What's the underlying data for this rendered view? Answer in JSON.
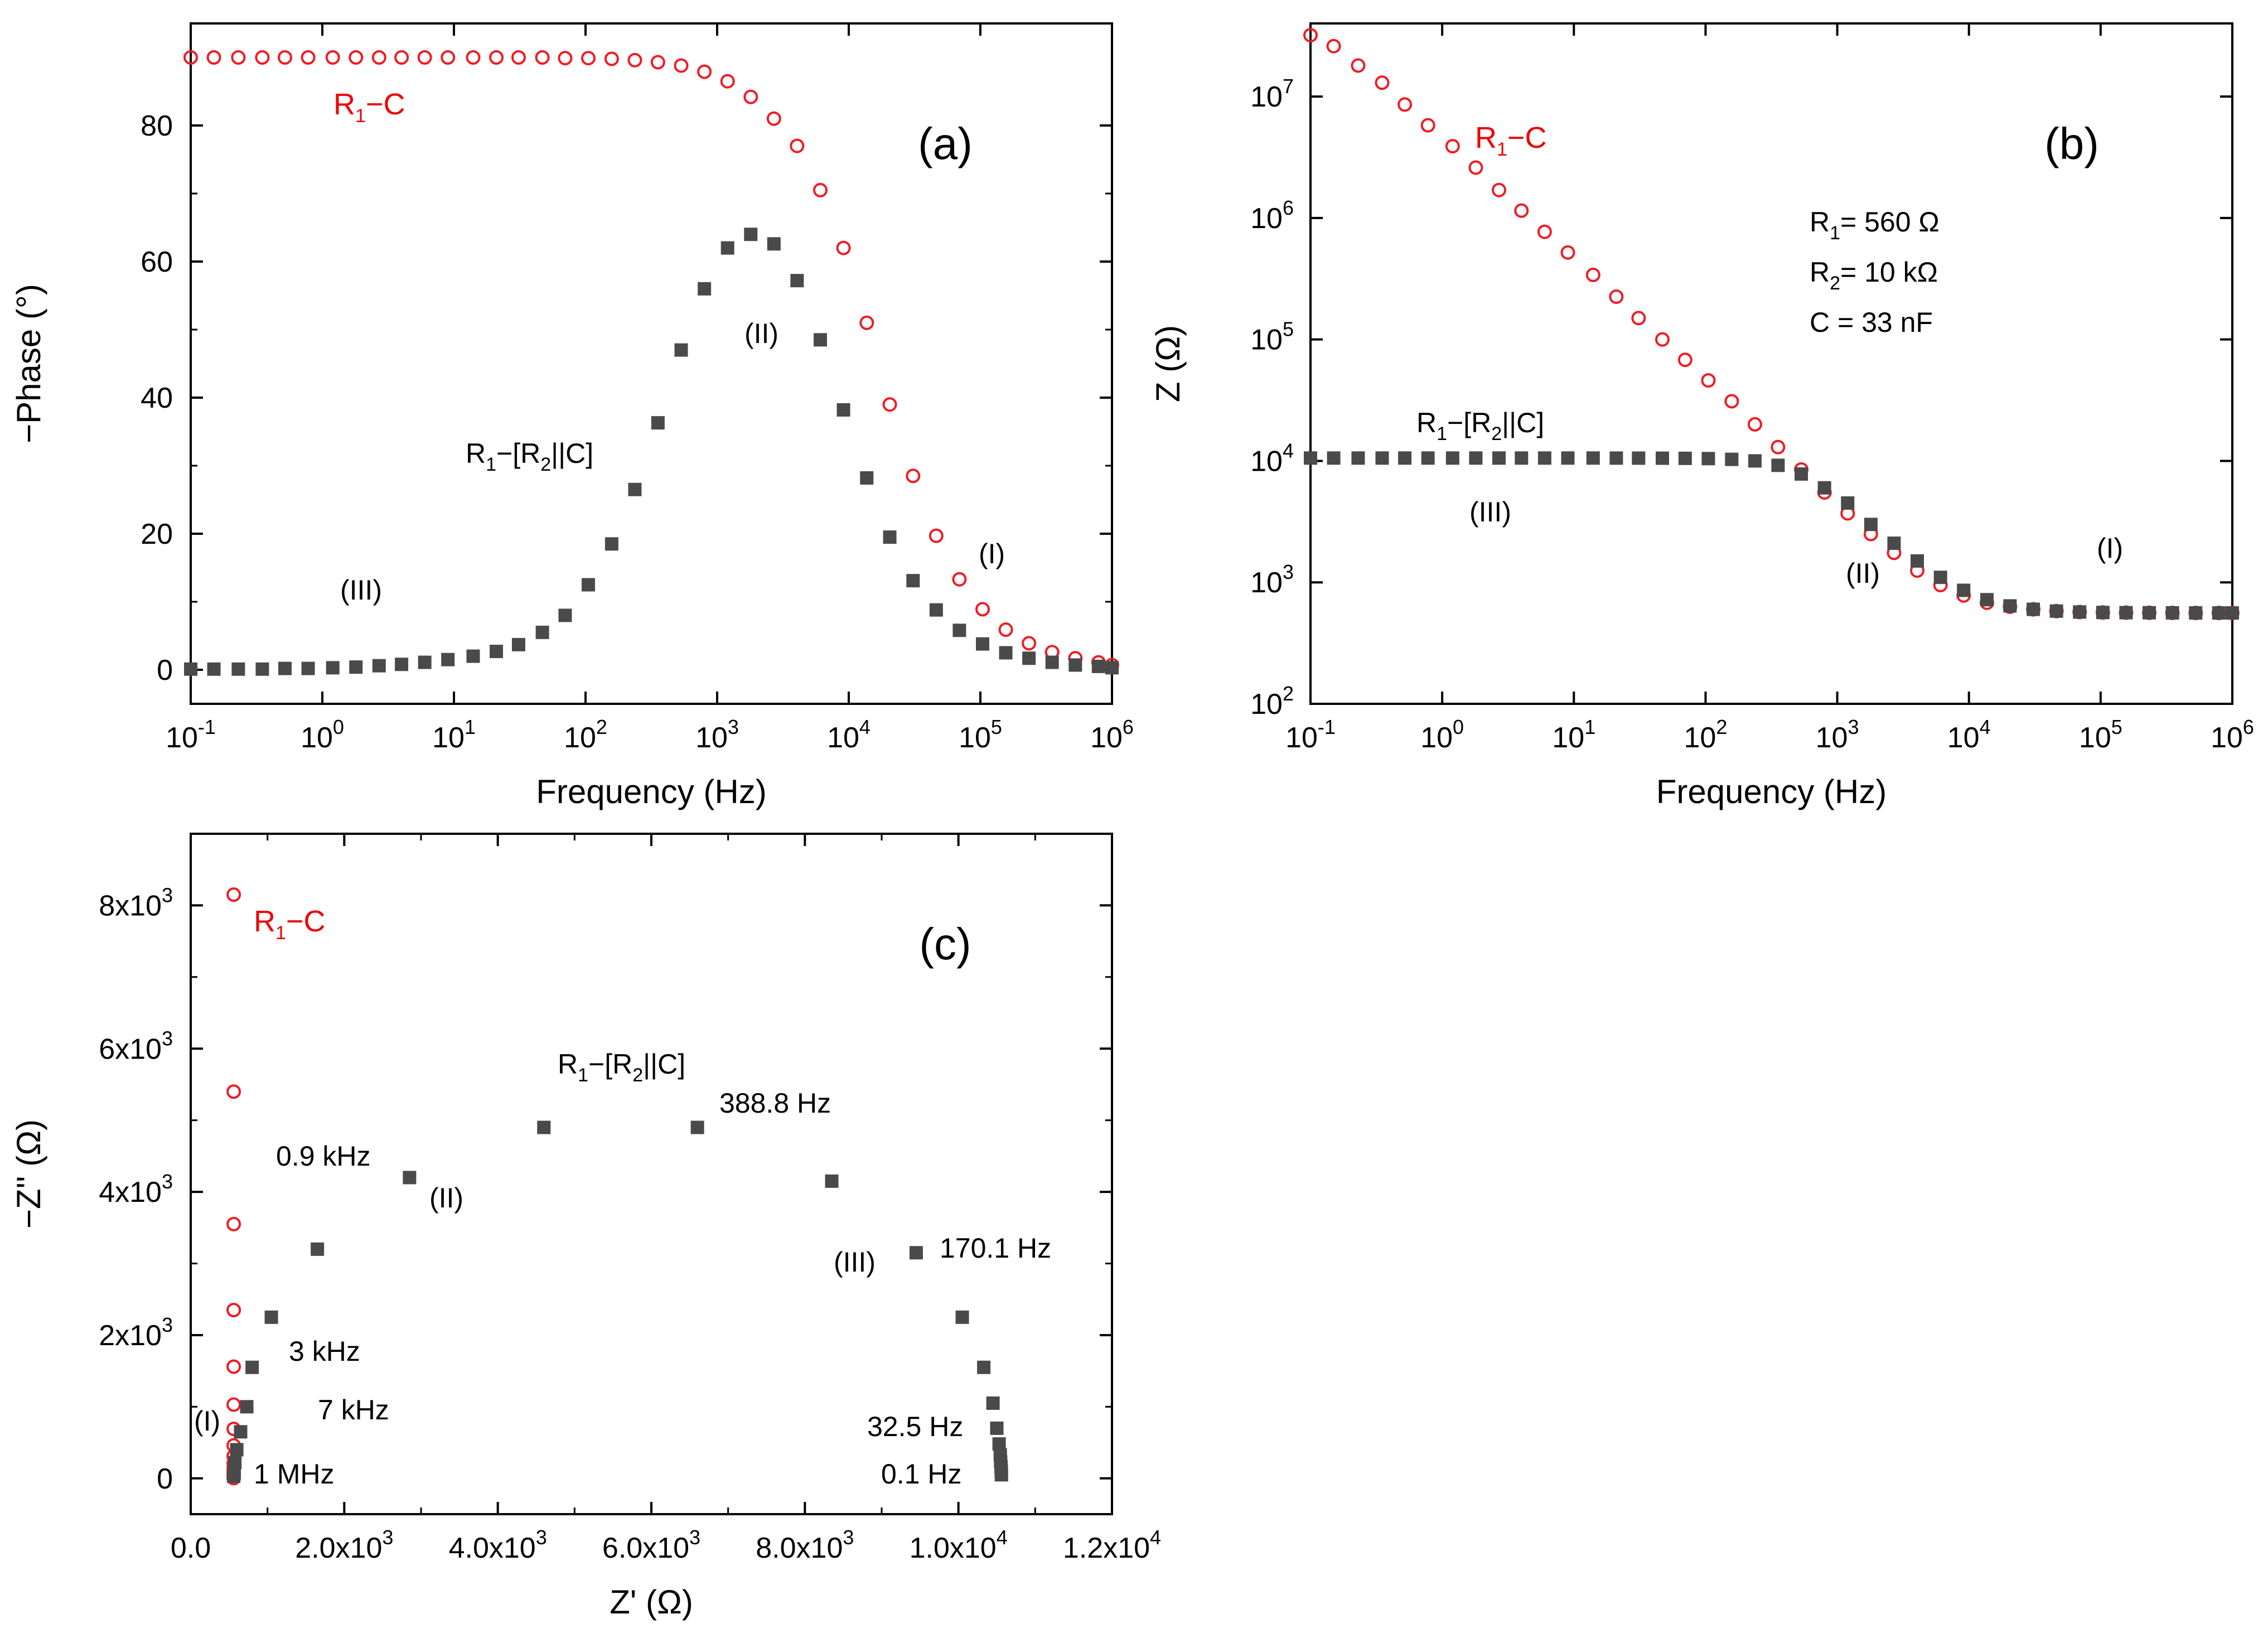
{
  "chart_data": [
    {
      "id": "a",
      "type": "scatter",
      "panel_label": "(a)",
      "xlabel": "Frequency (Hz)",
      "ylabel": "−Phase (°)",
      "xscale": "log",
      "xlim": [
        0.1,
        1000000
      ],
      "ylim": [
        -5,
        95
      ],
      "xticks": [
        {
          "v": 0.1,
          "base": "10",
          "exp": "-1"
        },
        {
          "v": 1,
          "base": "10",
          "exp": "0"
        },
        {
          "v": 10,
          "base": "10",
          "exp": "1"
        },
        {
          "v": 100,
          "base": "10",
          "exp": "2"
        },
        {
          "v": 1000,
          "base": "10",
          "exp": "3"
        },
        {
          "v": 10000,
          "base": "10",
          "exp": "4"
        },
        {
          "v": 100000,
          "base": "10",
          "exp": "5"
        },
        {
          "v": 1000000,
          "base": "10",
          "exp": "6"
        }
      ],
      "yticks": [
        {
          "v": 0,
          "label": "0"
        },
        {
          "v": 20,
          "label": "20"
        },
        {
          "v": 40,
          "label": "40"
        },
        {
          "v": 60,
          "label": "60"
        },
        {
          "v": 80,
          "label": "80"
        }
      ],
      "series": [
        {
          "name": "R1−C",
          "marker": "circle",
          "color": "#ee1c25",
          "x": [
            0.1,
            0.15,
            0.23,
            0.35,
            0.52,
            0.78,
            1.2,
            1.8,
            2.7,
            4,
            6,
            9,
            14,
            21,
            31,
            47,
            70,
            105,
            158,
            237,
            355,
            533,
            800,
            1200,
            1800,
            2700,
            4050,
            6080,
            9120,
            13700,
            20500,
            30800,
            46200,
            69300,
            104000,
            156000,
            234000,
            351000,
            527000,
            790000,
            1000000
          ],
          "y": [
            90,
            90,
            90,
            90,
            90,
            90,
            90,
            90,
            90,
            90,
            90,
            90,
            90,
            90,
            90,
            90,
            89.9,
            89.9,
            89.8,
            89.6,
            89.3,
            88.8,
            87.9,
            86.5,
            84.2,
            81,
            77,
            70.5,
            62,
            51,
            39,
            28.5,
            19.7,
            13.3,
            8.9,
            5.9,
            3.9,
            2.6,
            1.7,
            1.1,
            0.7
          ]
        },
        {
          "name": "R1−[R2||C]",
          "marker": "square",
          "color": "#4a4a4a",
          "x": [
            0.1,
            0.15,
            0.23,
            0.35,
            0.52,
            0.78,
            1.2,
            1.8,
            2.7,
            4,
            6,
            9,
            14,
            21,
            31,
            47,
            70,
            105,
            158,
            237,
            355,
            533,
            800,
            1200,
            1800,
            2700,
            4050,
            6080,
            9120,
            13700,
            20500,
            30800,
            46200,
            69300,
            104000,
            156000,
            234000,
            351000,
            527000,
            790000,
            1000000
          ],
          "y": [
            0.1,
            0.1,
            0.1,
            0.1,
            0.2,
            0.2,
            0.3,
            0.4,
            0.6,
            0.8,
            1.1,
            1.5,
            2,
            2.7,
            3.7,
            5.5,
            8,
            12.5,
            18.5,
            26.5,
            36.3,
            47,
            56,
            62,
            64,
            62.6,
            57.2,
            48.5,
            38.2,
            28.2,
            19.5,
            13.1,
            8.8,
            5.8,
            3.8,
            2.5,
            1.7,
            1.1,
            0.7,
            0.5,
            0.3
          ]
        }
      ],
      "annotations": [
        {
          "id": "rc",
          "text": "R",
          "sub": "1",
          "rest": "−C",
          "red": true
        },
        {
          "id": "rrc",
          "text": "R",
          "sub": "1",
          "mid": "−[R",
          "sub2": "2",
          "rest": "||C]"
        },
        {
          "id": "r2",
          "text": "(II)"
        },
        {
          "id": "r3",
          "text": "(III)"
        },
        {
          "id": "r1",
          "text": "(I)"
        }
      ]
    },
    {
      "id": "b",
      "type": "scatter",
      "panel_label": "(b)",
      "xlabel": "Frequency (Hz)",
      "ylabel": "Z (Ω)",
      "xscale": "log",
      "yscale": "log",
      "xlim": [
        0.1,
        1000000
      ],
      "ylim": [
        100,
        40000000
      ],
      "xticks": [
        {
          "v": 0.1,
          "base": "10",
          "exp": "-1"
        },
        {
          "v": 1,
          "base": "10",
          "exp": "0"
        },
        {
          "v": 10,
          "base": "10",
          "exp": "1"
        },
        {
          "v": 100,
          "base": "10",
          "exp": "2"
        },
        {
          "v": 1000,
          "base": "10",
          "exp": "3"
        },
        {
          "v": 10000,
          "base": "10",
          "exp": "4"
        },
        {
          "v": 100000,
          "base": "10",
          "exp": "5"
        },
        {
          "v": 1000000,
          "base": "10",
          "exp": "6"
        }
      ],
      "yticks": [
        {
          "v": 100,
          "base": "10",
          "exp": "2"
        },
        {
          "v": 1000,
          "base": "10",
          "exp": "3"
        },
        {
          "v": 10000,
          "base": "10",
          "exp": "4"
        },
        {
          "v": 100000,
          "base": "10",
          "exp": "5"
        },
        {
          "v": 1000000,
          "base": "10",
          "exp": "6"
        },
        {
          "v": 10000000,
          "base": "10",
          "exp": "7"
        }
      ],
      "series": [
        {
          "name": "R1−C",
          "marker": "circle",
          "color": "#ee1c25",
          "x": [
            0.1,
            0.15,
            0.23,
            0.35,
            0.52,
            0.78,
            1.2,
            1.8,
            2.7,
            4,
            6,
            9,
            14,
            21,
            31,
            47,
            70,
            105,
            158,
            237,
            355,
            533,
            800,
            1200,
            1800,
            2700,
            4050,
            6080,
            9120,
            13700,
            20500,
            30800,
            46200,
            69300,
            104000,
            156000,
            234000,
            351000,
            527000,
            790000,
            1000000
          ],
          "y": [
            32000000,
            26000000,
            18000000,
            13000000,
            8600000,
            5800000,
            3900000,
            2600000,
            1700000,
            1150000,
            770000,
            520000,
            340000,
            225000,
            150000,
            100000,
            68000,
            46000,
            31000,
            20000,
            13000,
            8500,
            5500,
            3700,
            2500,
            1750,
            1250,
            950,
            780,
            680,
            630,
            600,
            580,
            570,
            565,
            563,
            562,
            561,
            560,
            560,
            560
          ]
        },
        {
          "name": "R1−[R2||C]",
          "marker": "square",
          "color": "#4a4a4a",
          "x": [
            0.1,
            0.15,
            0.23,
            0.35,
            0.52,
            0.78,
            1.2,
            1.8,
            2.7,
            4,
            6,
            9,
            14,
            21,
            31,
            47,
            70,
            105,
            158,
            237,
            355,
            533,
            800,
            1200,
            1800,
            2700,
            4050,
            6080,
            9120,
            13700,
            20500,
            30800,
            46200,
            69300,
            104000,
            156000,
            234000,
            351000,
            527000,
            790000,
            1000000
          ],
          "y": [
            10560,
            10560,
            10560,
            10560,
            10560,
            10560,
            10560,
            10560,
            10560,
            10560,
            10560,
            10560,
            10560,
            10550,
            10540,
            10530,
            10500,
            10450,
            10300,
            10000,
            9200,
            7800,
            6000,
            4500,
            3000,
            2100,
            1500,
            1100,
            860,
            720,
            640,
            600,
            580,
            570,
            565,
            563,
            562,
            561,
            560,
            560,
            560
          ]
        }
      ],
      "annotations": [
        {
          "id": "rc",
          "text": "R",
          "sub": "1",
          "rest": "−C",
          "red": true
        },
        {
          "id": "rrc",
          "text": "R",
          "sub": "1",
          "mid": "−[R",
          "sub2": "2",
          "rest": "||C]"
        },
        {
          "id": "p1",
          "text": "R",
          "sub": "1",
          "rest": "= 560 Ω"
        },
        {
          "id": "p2",
          "text": "R",
          "sub": "2",
          "rest": "= 10 kΩ"
        },
        {
          "id": "p3",
          "text": "C = 33 nF"
        },
        {
          "id": "r3",
          "text": "(III)"
        },
        {
          "id": "r2",
          "text": "(II)"
        },
        {
          "id": "r1",
          "text": "(I)"
        }
      ]
    },
    {
      "id": "c",
      "type": "scatter",
      "panel_label": "(c)",
      "xlabel": "Z' (Ω)",
      "ylabel": "−Z'' (Ω)",
      "xlim": [
        0,
        12000
      ],
      "ylim": [
        -500,
        9000
      ],
      "xticks": [
        {
          "v": 0,
          "label": "0.0"
        },
        {
          "v": 2000,
          "mant": "2.0x10",
          "exp": "3"
        },
        {
          "v": 4000,
          "mant": "4.0x10",
          "exp": "3"
        },
        {
          "v": 6000,
          "mant": "6.0x10",
          "exp": "3"
        },
        {
          "v": 8000,
          "mant": "8.0x10",
          "exp": "3"
        },
        {
          "v": 10000,
          "mant": "1.0x10",
          "exp": "4"
        },
        {
          "v": 12000,
          "mant": "1.2x10",
          "exp": "4"
        }
      ],
      "yticks": [
        {
          "v": 0,
          "label": "0"
        },
        {
          "v": 2000,
          "mant": "2x10",
          "exp": "3"
        },
        {
          "v": 4000,
          "mant": "4x10",
          "exp": "3"
        },
        {
          "v": 6000,
          "mant": "6x10",
          "exp": "3"
        },
        {
          "v": 8000,
          "mant": "8x10",
          "exp": "3"
        }
      ],
      "series": [
        {
          "name": "R1−C",
          "marker": "circle",
          "color": "#ee1c25",
          "x": [
            560,
            560,
            560,
            560,
            560,
            560,
            560,
            560,
            560,
            560,
            560,
            560,
            560,
            560,
            560,
            560,
            560,
            560
          ],
          "y": [
            8150,
            5400,
            3550,
            2350,
            1560,
            1030,
            690,
            460,
            310,
            210,
            140,
            95,
            60,
            40,
            25,
            15,
            8,
            3
          ]
        },
        {
          "name": "R1−[R2||C]",
          "marker": "square",
          "color": "#4a4a4a",
          "x": [
            560,
            565,
            575,
            600,
            650,
            730,
            800,
            1050,
            1650,
            2850,
            4600,
            6600,
            8350,
            9450,
            10050,
            10330,
            10450,
            10500,
            10530,
            10545,
            10550,
            10555,
            10558,
            10560
          ],
          "y": [
            30,
            100,
            220,
            400,
            650,
            1000,
            1550,
            2250,
            3200,
            4200,
            4900,
            4900,
            4150,
            3150,
            2250,
            1550,
            1050,
            700,
            480,
            330,
            230,
            160,
            100,
            50
          ]
        }
      ],
      "annotations": [
        {
          "id": "rc",
          "text": "R",
          "sub": "1",
          "rest": "−C",
          "red": true
        },
        {
          "id": "rrc",
          "text": "R",
          "sub": "1",
          "mid": "−[R",
          "sub2": "2",
          "rest": "||C]"
        },
        {
          "id": "f388",
          "text": "388.8 Hz"
        },
        {
          "id": "f09k",
          "text": "0.9 kHz"
        },
        {
          "id": "r2",
          "text": "(II)"
        },
        {
          "id": "r3",
          "text": "(III)"
        },
        {
          "id": "f170",
          "text": "170.1 Hz"
        },
        {
          "id": "f3k",
          "text": "3 kHz"
        },
        {
          "id": "f7k",
          "text": "7 kHz"
        },
        {
          "id": "r1",
          "text": "(I)"
        },
        {
          "id": "f1m",
          "text": "1 MHz"
        },
        {
          "id": "f32",
          "text": "32.5 Hz"
        },
        {
          "id": "f01",
          "text": "0.1 Hz"
        }
      ]
    }
  ]
}
